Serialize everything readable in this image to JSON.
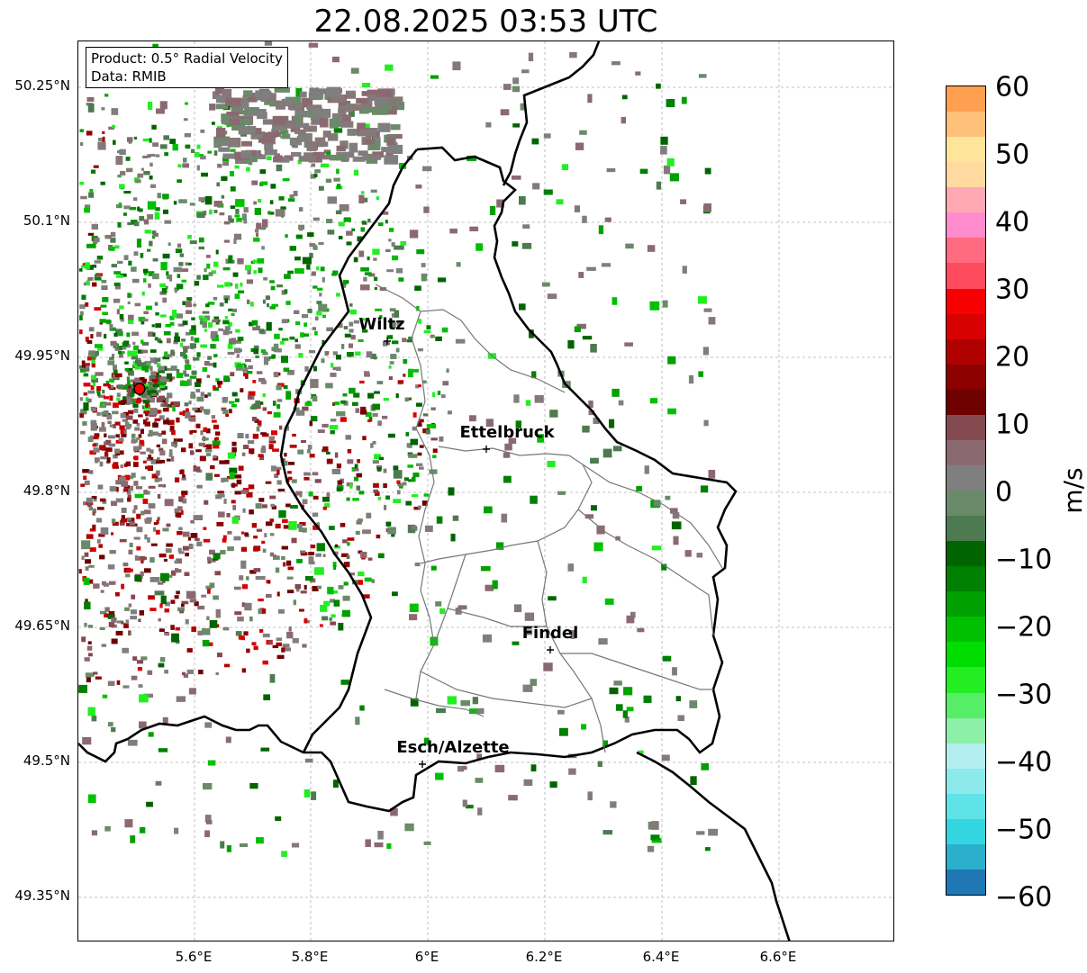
{
  "title": "22.08.2025 03:53 UTC",
  "infobox": {
    "product": "Product: 0.5° Radial Velocity",
    "data": "Data: RMIB"
  },
  "axes": {
    "lat_ticks": [
      "50.25°N",
      "50.1°N",
      "49.95°N",
      "49.8°N",
      "49.65°N",
      "49.5°N",
      "49.35°N"
    ],
    "lon_ticks": [
      "5.6°E",
      "5.8°E",
      "6°E",
      "6.2°E",
      "6.4°E",
      "6.6°E"
    ]
  },
  "colorbar": {
    "unit": "m/s",
    "tick_labels": [
      "60",
      "50",
      "40",
      "30",
      "20",
      "10",
      "0",
      "−10",
      "−20",
      "−30",
      "−40",
      "−50",
      "−60"
    ],
    "range": [
      -60,
      60
    ],
    "colors": [
      "#1f78b4",
      "#2ab0cc",
      "#33d6e0",
      "#5fe3e8",
      "#8ce9ec",
      "#b3eef0",
      "#8cf0a8",
      "#55ee66",
      "#22ee22",
      "#00dd00",
      "#00c000",
      "#00a000",
      "#007f00",
      "#006400",
      "#4d7a50",
      "#6a8a6a",
      "#7f7f7f",
      "#8a6a70",
      "#844a50",
      "#6e0000",
      "#8c0000",
      "#b00000",
      "#d80000",
      "#f70000",
      "#ff4b5e",
      "#ff6a80",
      "#ff8ccc",
      "#ffa8b4",
      "#ffd9a0",
      "#ffe59a",
      "#ffc07a",
      "#ffa050"
    ]
  },
  "cities": [
    {
      "name": "Wiltz"
    },
    {
      "name": "Ettelbruck"
    },
    {
      "name": "Findel"
    },
    {
      "name": "Esch/Alzette"
    }
  ],
  "radar": {
    "color": "#ff0000"
  }
}
